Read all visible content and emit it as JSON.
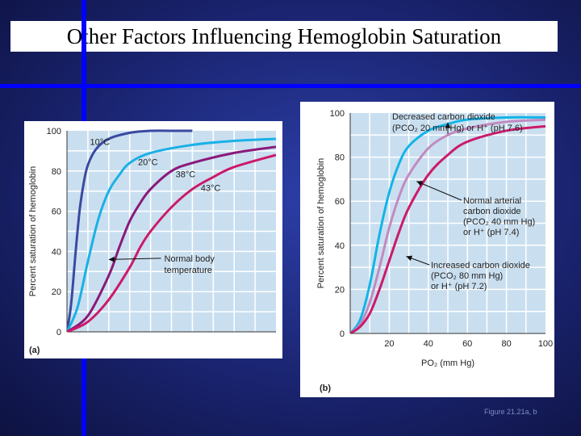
{
  "slide": {
    "title": "Other Factors Influencing Hemoglobin Saturation",
    "caption": "Figure 21.21a, b"
  },
  "colors": {
    "background": "#1a2470",
    "accent_lines": "#0000ff",
    "plot_bg": "#c9dff0",
    "grid": "#ffffff"
  },
  "chart_data": [
    {
      "type": "line",
      "panel_label": "(a)",
      "title": "",
      "xlabel": "",
      "ylabel": "Percent saturation of hemoglobin",
      "xlim": [
        0,
        100
      ],
      "ylim": [
        0,
        100
      ],
      "yticks": [
        0,
        20,
        40,
        60,
        80,
        100
      ],
      "grid": true,
      "series": [
        {
          "name": "10°C",
          "color": "#3a4aa0",
          "x": [
            0,
            2,
            4,
            6,
            8,
            10,
            14,
            20,
            30,
            40,
            50,
            60
          ],
          "y": [
            0,
            14,
            38,
            60,
            74,
            83,
            91,
            96,
            99,
            100,
            100,
            100
          ]
        },
        {
          "name": "20°C",
          "color": "#1ab0e6",
          "x": [
            0,
            5,
            10,
            15,
            20,
            25,
            30,
            40,
            60,
            80,
            100
          ],
          "y": [
            0,
            12,
            35,
            56,
            70,
            78,
            84,
            89,
            93,
            95,
            96
          ]
        },
        {
          "name": "38°C",
          "color": "#8a1a7a",
          "x": [
            0,
            10,
            20,
            25,
            30,
            35,
            40,
            50,
            60,
            80,
            100
          ],
          "y": [
            0,
            8,
            28,
            42,
            55,
            64,
            71,
            80,
            84,
            89,
            92
          ]
        },
        {
          "name": "43°C",
          "color": "#cc1a6a",
          "x": [
            0,
            10,
            20,
            30,
            35,
            40,
            50,
            60,
            70,
            80,
            100
          ],
          "y": [
            0,
            5,
            16,
            32,
            42,
            50,
            62,
            71,
            77,
            82,
            88
          ]
        }
      ],
      "annotations": [
        {
          "text_lines": [
            "Normal body",
            "temperature"
          ],
          "points_to": {
            "x": 20,
            "y": 36
          }
        }
      ],
      "series_labels": [
        {
          "text": "10°C",
          "at": {
            "x": 11,
            "y": 93
          }
        },
        {
          "text": "20°C",
          "at": {
            "x": 34,
            "y": 83
          }
        },
        {
          "text": "38°C",
          "at": {
            "x": 52,
            "y": 77
          }
        },
        {
          "text": "43°C",
          "at": {
            "x": 64,
            "y": 70
          }
        }
      ]
    },
    {
      "type": "line",
      "panel_label": "(b)",
      "title": "",
      "xlabel": "PO₂ (mm Hg)",
      "ylabel": "Percent saturation of hemoglobin",
      "xlim": [
        0,
        100
      ],
      "ylim": [
        0,
        100
      ],
      "xticks": [
        20,
        40,
        60,
        80,
        100
      ],
      "yticks": [
        0,
        20,
        40,
        60,
        80,
        100
      ],
      "grid": true,
      "series": [
        {
          "name": "Decreased carbon dioxide",
          "color": "#12b4e8",
          "x": [
            0,
            5,
            10,
            15,
            20,
            25,
            30,
            40,
            50,
            60,
            80,
            100
          ],
          "y": [
            0,
            6,
            22,
            45,
            64,
            77,
            85,
            92,
            95,
            97,
            98,
            98
          ]
        },
        {
          "name": "Normal arterial carbon dioxide",
          "color": "#c28ac0",
          "x": [
            0,
            5,
            10,
            15,
            20,
            25,
            30,
            40,
            50,
            60,
            80,
            100
          ],
          "y": [
            0,
            4,
            14,
            30,
            48,
            62,
            72,
            84,
            90,
            93,
            96,
            97
          ]
        },
        {
          "name": "Increased carbon dioxide",
          "color": "#cc1a6a",
          "x": [
            0,
            5,
            10,
            15,
            20,
            25,
            30,
            40,
            50,
            60,
            80,
            100
          ],
          "y": [
            0,
            3,
            9,
            20,
            33,
            46,
            57,
            72,
            81,
            87,
            92,
            94
          ]
        }
      ],
      "annotations": [
        {
          "text_lines": [
            "Decreased carbon dioxide",
            "(PCO₂ 20 mm Hg) or H⁺ (pH 7.6)"
          ],
          "points_to": {
            "x": 50,
            "y": 95
          }
        },
        {
          "text_lines": [
            "Normal arterial",
            "carbon dioxide",
            "(PCO₂ 40 mm Hg)",
            "or H⁺ (pH 7.4)"
          ],
          "points_to": {
            "x": 34,
            "y": 69
          }
        },
        {
          "text_lines": [
            "Increased carbon dioxide",
            "(PCO₂ 80 mm Hg)",
            "or H⁺ (pH 7.2)"
          ],
          "points_to": {
            "x": 27,
            "y": 35
          }
        }
      ]
    }
  ]
}
